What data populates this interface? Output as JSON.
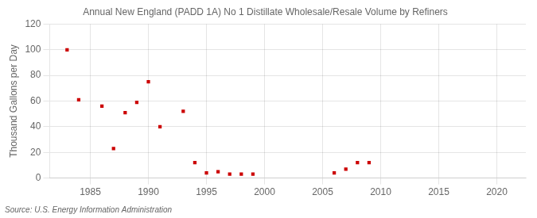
{
  "chart_data": {
    "type": "scatter",
    "title": "Annual New England (PADD 1A) No 1 Distillate Wholesale/Resale Volume by Refiners",
    "ylabel": "Thousand Gallons per Day",
    "source": "Source: U.S. Energy Information Administration",
    "x": [
      1983,
      1984,
      1986,
      1987,
      1988,
      1989,
      1990,
      1991,
      1993,
      1994,
      1995,
      1996,
      1997,
      1998,
      1999,
      2006,
      2007,
      2008,
      2009
    ],
    "values": [
      100,
      61,
      56,
      23,
      51,
      59,
      75,
      40,
      52,
      12,
      4,
      5,
      3,
      3,
      3,
      4,
      7,
      12,
      12
    ],
    "color": "#cc0000",
    "marker": "square",
    "xlim": [
      1981.5,
      2022.5
    ],
    "ylim": [
      0,
      120
    ],
    "xticks": [
      1985,
      1990,
      1995,
      2000,
      2005,
      2010,
      2015,
      2020
    ],
    "yticks": [
      0,
      20,
      40,
      60,
      80,
      100,
      120
    ],
    "grid": true
  }
}
